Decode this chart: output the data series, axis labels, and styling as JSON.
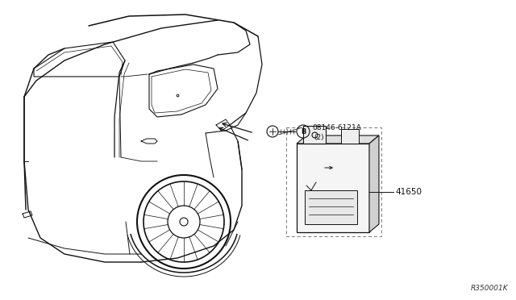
{
  "bg_color": "#ffffff",
  "line_color": "#1a1a1a",
  "fig_width": 6.4,
  "fig_height": 3.72,
  "dpi": 100,
  "watermark": "R350001K",
  "part_label_1": "08146-6121A",
  "part_label_1b": "(2)",
  "part_label_2": "41650",
  "callout_letter": "B",
  "car_lines_color": "#111111",
  "detail_color": "#333333"
}
